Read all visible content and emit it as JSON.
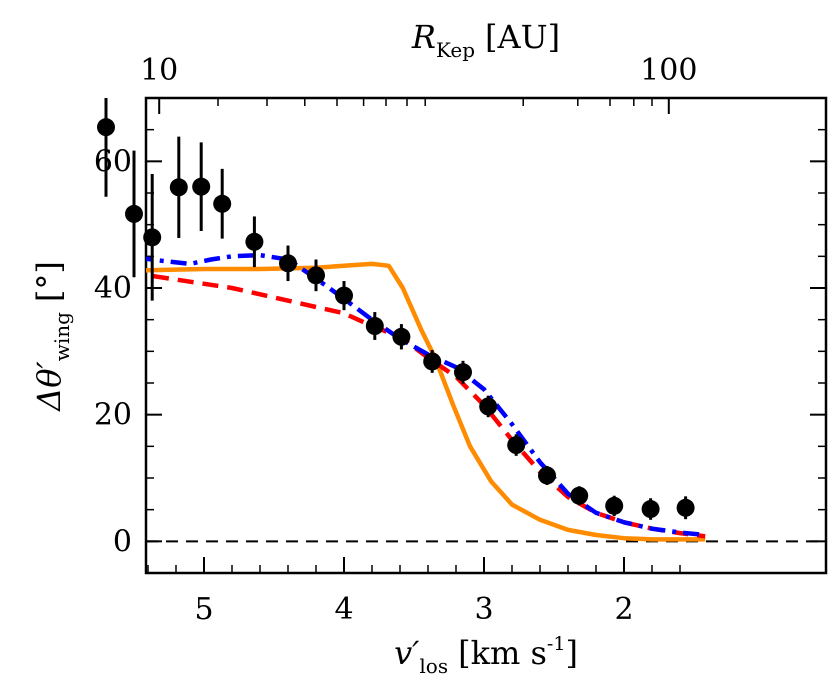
{
  "chart_data": {
    "type": "line",
    "xlabel": {
      "prefix": "v′",
      "subscript": "los",
      "units": "[km s",
      "units_superscript": "-1",
      "units_close": "]"
    },
    "ylabel": {
      "prefix": "Δθ′",
      "subscript": "wing",
      "units": "[°]"
    },
    "top_axis_label": {
      "symbol": "R",
      "subscript": "Kep",
      "units": "[AU]"
    },
    "x_scale": "reversed (velocity decreasing to the right)",
    "x_range": [
      5.72,
      1.42
    ],
    "ylim": [
      -5,
      70
    ],
    "x_ticks": [
      5,
      4,
      3,
      2
    ],
    "x_tick_labels": [
      "5",
      "4",
      "3",
      "2"
    ],
    "y_ticks": [
      0,
      20,
      40,
      60
    ],
    "y_tick_labels": [
      "0",
      "20",
      "40",
      "60"
    ],
    "top_ticks": [
      {
        "v": 5.32,
        "label": "10"
      },
      {
        "v": 1.68,
        "label": "100"
      }
    ],
    "zero_line": {
      "y": 0,
      "style": "dashed",
      "color": "#000000"
    },
    "series": [
      {
        "kind": "errorbar",
        "color": "#000000",
        "points": [
          {
            "x": 5.7,
            "y": 65.4,
            "err": 11.0
          },
          {
            "x": 5.5,
            "y": 51.7,
            "err": 10.0
          },
          {
            "x": 5.37,
            "y": 48.0,
            "err": 10.0
          },
          {
            "x": 5.18,
            "y": 55.9,
            "err": 8.0
          },
          {
            "x": 5.02,
            "y": 56.0,
            "err": 7.0
          },
          {
            "x": 4.87,
            "y": 53.3,
            "err": 5.5
          },
          {
            "x": 4.64,
            "y": 47.3,
            "err": 4.0
          },
          {
            "x": 4.4,
            "y": 43.9,
            "err": 2.8
          },
          {
            "x": 4.2,
            "y": 42.0,
            "err": 2.5
          },
          {
            "x": 4.0,
            "y": 38.8,
            "err": 2.3
          },
          {
            "x": 3.78,
            "y": 34.0,
            "err": 2.2
          },
          {
            "x": 3.59,
            "y": 32.3,
            "err": 2.0
          },
          {
            "x": 3.37,
            "y": 28.4,
            "err": 1.8
          },
          {
            "x": 3.15,
            "y": 26.7,
            "err": 1.8
          },
          {
            "x": 2.97,
            "y": 21.3,
            "err": 1.7
          },
          {
            "x": 2.77,
            "y": 15.2,
            "err": 1.7
          },
          {
            "x": 2.55,
            "y": 10.4,
            "err": 1.5
          },
          {
            "x": 2.32,
            "y": 7.2,
            "err": 1.5
          },
          {
            "x": 2.07,
            "y": 5.6,
            "err": 1.6
          },
          {
            "x": 1.81,
            "y": 5.1,
            "err": 1.7
          },
          {
            "x": 1.56,
            "y": 5.3,
            "err": 1.8
          }
        ]
      },
      {
        "kind": "line",
        "style": "solid",
        "color": "#ff8c00",
        "points": [
          [
            5.72,
            42.5
          ],
          [
            5.4,
            42.8
          ],
          [
            5.0,
            43.0
          ],
          [
            4.6,
            43.0
          ],
          [
            4.2,
            43.2
          ],
          [
            3.95,
            43.6
          ],
          [
            3.8,
            43.8
          ],
          [
            3.68,
            43.5
          ],
          [
            3.58,
            40.0
          ],
          [
            3.45,
            33.5
          ],
          [
            3.35,
            29.0
          ],
          [
            3.22,
            21.5
          ],
          [
            3.1,
            15.0
          ],
          [
            2.95,
            9.5
          ],
          [
            2.8,
            5.8
          ],
          [
            2.6,
            3.4
          ],
          [
            2.4,
            1.8
          ],
          [
            2.2,
            1.0
          ],
          [
            2.0,
            0.5
          ],
          [
            1.8,
            0.3
          ],
          [
            1.6,
            0.3
          ],
          [
            1.42,
            0.3
          ]
        ]
      },
      {
        "kind": "line",
        "style": "dashed",
        "color": "#ff0000",
        "points": [
          [
            5.72,
            42.5
          ],
          [
            5.4,
            42.0
          ],
          [
            5.1,
            41.0
          ],
          [
            4.8,
            40.0
          ],
          [
            4.5,
            38.5
          ],
          [
            4.2,
            37.0
          ],
          [
            4.0,
            36.0
          ],
          [
            3.8,
            34.0
          ],
          [
            3.6,
            32.3
          ],
          [
            3.4,
            29.0
          ],
          [
            3.2,
            26.0
          ],
          [
            3.0,
            21.5
          ],
          [
            2.8,
            16.0
          ],
          [
            2.6,
            11.0
          ],
          [
            2.4,
            7.0
          ],
          [
            2.2,
            4.5
          ],
          [
            2.0,
            3.0
          ],
          [
            1.8,
            2.0
          ],
          [
            1.6,
            1.3
          ],
          [
            1.42,
            0.8
          ]
        ]
      },
      {
        "kind": "line",
        "style": "dashdot",
        "color": "#0000ff",
        "points": [
          [
            5.72,
            45.5
          ],
          [
            5.55,
            45.0
          ],
          [
            5.3,
            44.3
          ],
          [
            5.1,
            43.8
          ],
          [
            4.95,
            44.5
          ],
          [
            4.8,
            45.0
          ],
          [
            4.6,
            45.2
          ],
          [
            4.4,
            44.5
          ],
          [
            4.2,
            41.5
          ],
          [
            4.0,
            38.3
          ],
          [
            3.8,
            35.0
          ],
          [
            3.6,
            32.0
          ],
          [
            3.4,
            29.5
          ],
          [
            3.2,
            27.5
          ],
          [
            3.0,
            24.0
          ],
          [
            2.8,
            18.5
          ],
          [
            2.6,
            12.5
          ],
          [
            2.4,
            7.5
          ],
          [
            2.2,
            4.5
          ],
          [
            2.0,
            3.0
          ],
          [
            1.8,
            2.0
          ],
          [
            1.6,
            1.4
          ],
          [
            1.42,
            1.0
          ]
        ]
      }
    ]
  }
}
